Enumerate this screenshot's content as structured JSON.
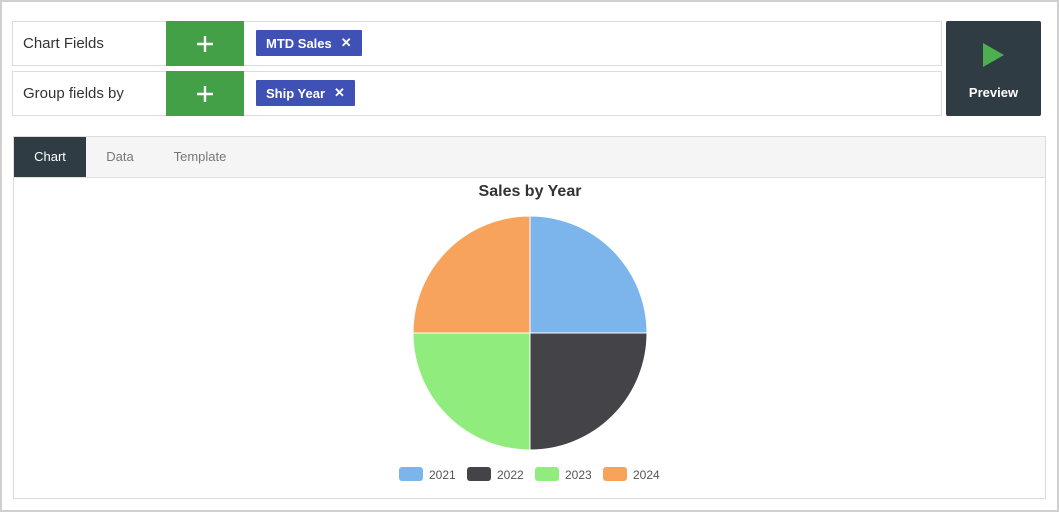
{
  "fields": {
    "chart_fields": {
      "label": "Chart Fields",
      "chips": [
        "MTD Sales"
      ]
    },
    "group_fields": {
      "label": "Group fields by",
      "chips": [
        "Ship Year"
      ]
    },
    "add_symbol": "+",
    "remove_symbol": "✕"
  },
  "preview": {
    "label": "Preview",
    "icon": "play-icon",
    "icon_color": "#4caf50"
  },
  "tabs": [
    {
      "label": "Chart",
      "active": true
    },
    {
      "label": "Data",
      "active": false
    },
    {
      "label": "Template",
      "active": false
    }
  ],
  "colors": {
    "add_button": "#43a047",
    "chip": "#3f51b5",
    "dark": "#2f3c44"
  },
  "chart_data": {
    "type": "pie",
    "title": "Sales by Year",
    "categories": [
      "2021",
      "2022",
      "2023",
      "2024"
    ],
    "values": [
      25,
      25,
      25,
      25
    ],
    "colors": [
      "#7cb5ec",
      "#434348",
      "#90ed7d",
      "#f7a35c"
    ],
    "legend": "bottom-center"
  }
}
